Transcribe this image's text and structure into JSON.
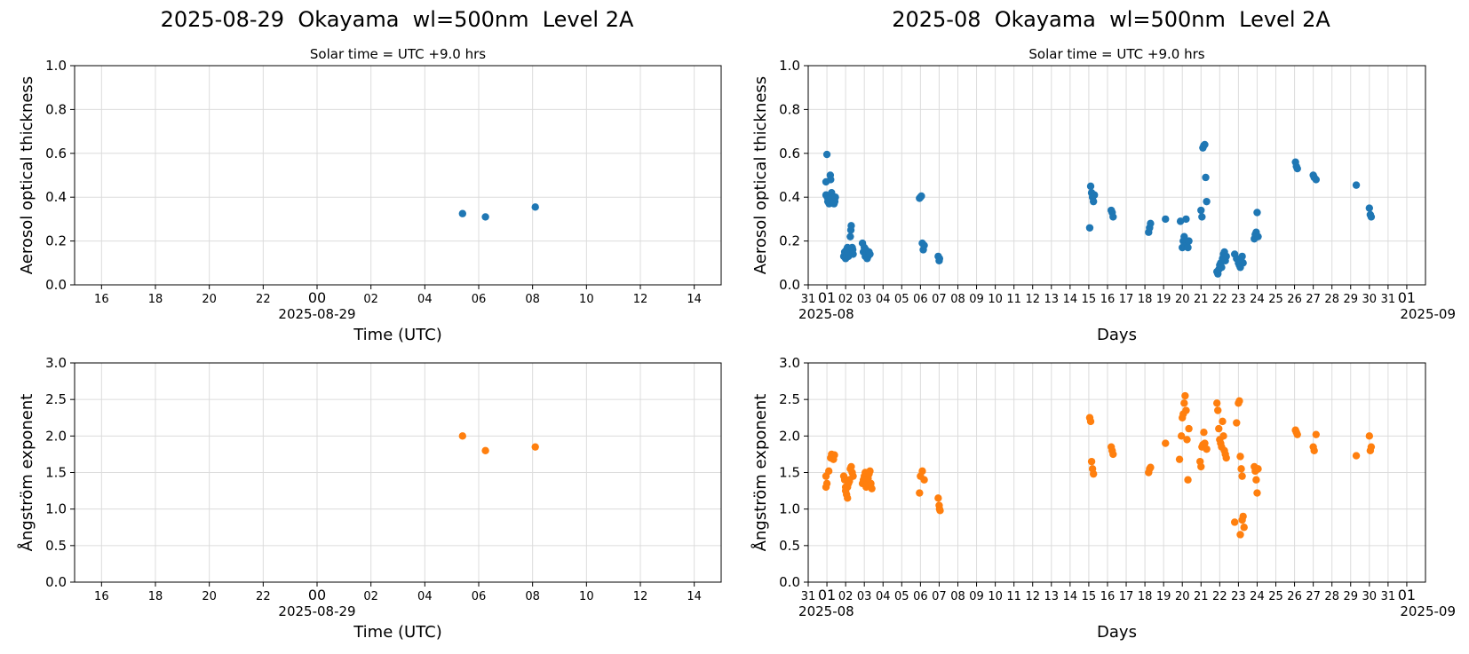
{
  "chart_data": [
    {
      "id": "daily_aot",
      "type": "scatter",
      "suptitle": "2025-08-29  Okayama  wl=500nm  Level 2A",
      "title": "Solar time = UTC +9.0 hrs",
      "xlabel": "Time (UTC)",
      "ylabel": "Aerosol optical thickness",
      "x_tick_labels": [
        "16",
        "18",
        "20",
        "22",
        "00",
        "02",
        "04",
        "06",
        "08",
        "10",
        "12",
        "14"
      ],
      "x_date_label": "2025-08-29",
      "xlim_hours": [
        -9,
        15
      ],
      "ylim": [
        0,
        1.0
      ],
      "y_tick_labels": [
        "0.0",
        "0.2",
        "0.4",
        "0.6",
        "0.8",
        "1.0"
      ],
      "grid": true,
      "color": "#1f77b4",
      "series": [
        {
          "x_hours_utc": [
            5.4,
            6.25,
            8.1
          ],
          "y": [
            0.325,
            0.31,
            0.355
          ]
        }
      ]
    },
    {
      "id": "monthly_aot",
      "type": "scatter",
      "suptitle": "2025-08  Okayama  wl=500nm  Level 2A",
      "title": "Solar time = UTC +9.0 hrs",
      "xlabel": "Days",
      "ylabel": "Aerosol optical thickness",
      "x_tick_labels": [
        "31",
        "01",
        "02",
        "03",
        "04",
        "05",
        "06",
        "07",
        "08",
        "09",
        "10",
        "11",
        "12",
        "13",
        "14",
        "15",
        "16",
        "17",
        "18",
        "19",
        "20",
        "21",
        "22",
        "23",
        "24",
        "25",
        "26",
        "27",
        "28",
        "29",
        "30",
        "31",
        "01"
      ],
      "x_date_label_left": "2025-08",
      "x_date_label_right": "2025-09",
      "xlim_days": [
        -1,
        32
      ],
      "ylim": [
        0,
        1.0
      ],
      "y_tick_labels": [
        "0.0",
        "0.2",
        "0.4",
        "0.6",
        "0.8",
        "1.0"
      ],
      "grid": true,
      "color": "#1f77b4",
      "series": [
        {
          "x_day": [
            -0.05,
            -0.05,
            0.0,
            0.02,
            0.05,
            0.1,
            0.12,
            0.15,
            0.18,
            0.2,
            0.22,
            0.25,
            0.3,
            0.35,
            0.38,
            0.4,
            0.42,
            0.45,
            0.9,
            0.95,
            1.0,
            1.05,
            1.08,
            1.1,
            1.15,
            1.2,
            1.25,
            1.28,
            1.3,
            1.35,
            1.38,
            1.4,
            1.9,
            1.95,
            2.0,
            2.05,
            2.08,
            2.1,
            2.15,
            2.2,
            2.25,
            2.3,
            4.95,
            5.0,
            5.05,
            5.1,
            5.15,
            5.2,
            5.95,
            6.0,
            6.02,
            14.05,
            14.1,
            14.15,
            14.2,
            14.25,
            14.3,
            15.2,
            15.25,
            15.3,
            17.2,
            17.25,
            17.3,
            18.1,
            18.9,
            19.0,
            19.05,
            19.1,
            19.15,
            19.2,
            19.25,
            19.3,
            19.35,
            20.0,
            20.05,
            20.1,
            20.15,
            20.2,
            20.25,
            20.3,
            20.85,
            20.9,
            20.95,
            21.0,
            21.05,
            21.1,
            21.15,
            21.2,
            21.25,
            21.3,
            21.35,
            21.8,
            21.9,
            22.0,
            22.05,
            22.1,
            22.15,
            22.2,
            22.25,
            22.85,
            22.9,
            22.95,
            23.0,
            23.05,
            25.05,
            25.1,
            25.15,
            26.0,
            26.05,
            26.15,
            28.3,
            29.0,
            29.05,
            29.1
          ],
          "y": [
            0.47,
            0.41,
            0.595,
            0.4,
            0.38,
            0.39,
            0.37,
            0.4,
            0.5,
            0.48,
            0.4,
            0.42,
            0.38,
            0.4,
            0.37,
            0.39,
            0.38,
            0.4,
            0.13,
            0.15,
            0.12,
            0.16,
            0.14,
            0.17,
            0.13,
            0.15,
            0.22,
            0.25,
            0.27,
            0.17,
            0.16,
            0.14,
            0.19,
            0.15,
            0.17,
            0.13,
            0.16,
            0.14,
            0.12,
            0.13,
            0.15,
            0.14,
            0.395,
            0.4,
            0.405,
            0.19,
            0.16,
            0.18,
            0.13,
            0.11,
            0.12,
            0.26,
            0.45,
            0.42,
            0.4,
            0.38,
            0.41,
            0.34,
            0.33,
            0.31,
            0.24,
            0.26,
            0.28,
            0.3,
            0.29,
            0.17,
            0.2,
            0.22,
            0.18,
            0.3,
            0.19,
            0.17,
            0.2,
            0.34,
            0.31,
            0.625,
            0.635,
            0.64,
            0.49,
            0.38,
            0.06,
            0.05,
            0.07,
            0.09,
            0.1,
            0.08,
            0.12,
            0.14,
            0.15,
            0.11,
            0.13,
            0.14,
            0.12,
            0.1,
            0.09,
            0.08,
            0.11,
            0.13,
            0.1,
            0.21,
            0.23,
            0.24,
            0.33,
            0.22,
            0.56,
            0.54,
            0.53,
            0.5,
            0.49,
            0.48,
            0.455,
            0.35,
            0.32,
            0.31
          ]
        }
      ]
    },
    {
      "id": "daily_angstrom",
      "type": "scatter",
      "xlabel": "Time (UTC)",
      "ylabel": "Ångström exponent",
      "x_tick_labels": [
        "16",
        "18",
        "20",
        "22",
        "00",
        "02",
        "04",
        "06",
        "08",
        "10",
        "12",
        "14"
      ],
      "x_date_label": "2025-08-29",
      "xlim_hours": [
        -9,
        15
      ],
      "ylim": [
        0,
        3.0
      ],
      "y_tick_labels": [
        "0.0",
        "0.5",
        "1.0",
        "1.5",
        "2.0",
        "2.5",
        "3.0"
      ],
      "grid": true,
      "color": "#ff7f0e",
      "series": [
        {
          "x_hours_utc": [
            5.4,
            6.25,
            8.1
          ],
          "y": [
            2.0,
            1.8,
            1.85
          ]
        }
      ]
    },
    {
      "id": "monthly_angstrom",
      "type": "scatter",
      "xlabel": "Days",
      "ylabel": "Ångström exponent",
      "x_tick_labels": [
        "31",
        "01",
        "02",
        "03",
        "04",
        "05",
        "06",
        "07",
        "08",
        "09",
        "10",
        "11",
        "12",
        "13",
        "14",
        "15",
        "16",
        "17",
        "18",
        "19",
        "20",
        "21",
        "22",
        "23",
        "24",
        "25",
        "26",
        "27",
        "28",
        "29",
        "30",
        "31",
        "01"
      ],
      "x_date_label_left": "2025-08",
      "x_date_label_right": "2025-09",
      "xlim_days": [
        -1,
        32
      ],
      "ylim": [
        0,
        3.0
      ],
      "y_tick_labels": [
        "0.0",
        "0.5",
        "1.0",
        "1.5",
        "2.0",
        "2.5",
        "3.0"
      ],
      "grid": true,
      "color": "#ff7f0e",
      "series": [
        {
          "x_day": [
            -0.05,
            -0.05,
            0.0,
            0.1,
            0.2,
            0.25,
            0.3,
            0.35,
            0.4,
            0.9,
            0.95,
            1.0,
            1.05,
            1.1,
            1.15,
            1.2,
            1.25,
            1.3,
            1.35,
            1.4,
            1.0,
            1.1,
            1.2,
            1.9,
            1.95,
            2.0,
            2.05,
            2.1,
            2.15,
            2.2,
            2.25,
            2.3,
            2.35,
            2.4,
            4.95,
            5.0,
            5.1,
            5.2,
            5.95,
            6.0,
            6.02,
            6.05,
            14.05,
            14.1,
            14.15,
            14.2,
            14.25,
            15.2,
            15.25,
            15.3,
            17.2,
            17.25,
            17.3,
            18.1,
            18.85,
            18.95,
            19.0,
            19.05,
            19.1,
            19.15,
            19.2,
            19.25,
            19.3,
            19.35,
            19.95,
            20.0,
            20.05,
            20.1,
            20.15,
            20.2,
            20.3,
            20.85,
            20.9,
            20.95,
            21.0,
            21.05,
            21.1,
            21.15,
            21.2,
            21.25,
            21.3,
            21.35,
            21.8,
            21.9,
            22.0,
            22.05,
            22.1,
            22.15,
            22.2,
            22.25,
            22.3,
            22.1,
            22.2,
            22.85,
            22.9,
            22.95,
            23.0,
            23.05,
            25.05,
            25.1,
            25.15,
            26.0,
            26.05,
            26.15,
            28.3,
            29.0,
            29.05,
            29.1
          ],
          "y": [
            1.45,
            1.3,
            1.35,
            1.52,
            1.7,
            1.75,
            1.72,
            1.68,
            1.74,
            1.45,
            1.4,
            1.3,
            1.2,
            1.15,
            1.35,
            1.4,
            1.55,
            1.58,
            1.5,
            1.45,
            1.25,
            1.3,
            1.38,
            1.35,
            1.4,
            1.45,
            1.5,
            1.3,
            1.38,
            1.42,
            1.48,
            1.52,
            1.35,
            1.28,
            1.22,
            1.45,
            1.52,
            1.4,
            1.15,
            1.05,
            1.0,
            0.98,
            2.25,
            2.2,
            1.65,
            1.55,
            1.48,
            1.85,
            1.8,
            1.75,
            1.5,
            1.55,
            1.57,
            1.9,
            1.68,
            2.0,
            2.25,
            2.3,
            2.45,
            2.55,
            2.35,
            1.95,
            1.4,
            2.1,
            1.65,
            1.58,
            1.85,
            1.88,
            2.05,
            1.9,
            1.82,
            2.45,
            2.35,
            2.1,
            1.95,
            1.9,
            1.85,
            2.2,
            2.0,
            1.8,
            1.75,
            1.7,
            0.82,
            2.18,
            2.45,
            2.48,
            1.72,
            1.55,
            1.45,
            0.9,
            0.75,
            0.65,
            0.85,
            1.58,
            1.52,
            1.4,
            1.22,
            1.55,
            2.08,
            2.05,
            2.02,
            1.85,
            1.8,
            2.02,
            1.73,
            2.0,
            1.8,
            1.85
          ]
        }
      ]
    }
  ]
}
